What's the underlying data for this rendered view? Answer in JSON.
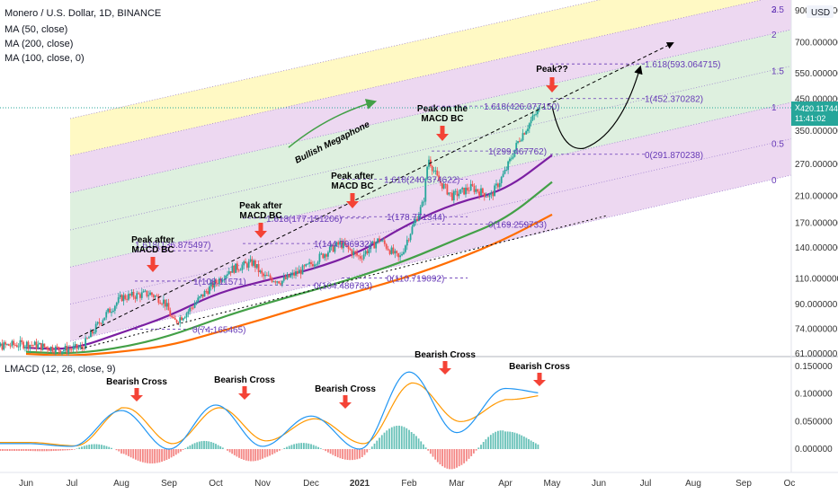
{
  "header": {
    "title": "Monero / U.S. Dollar, 1D, BINANCE",
    "indicators": [
      "MA (50, close)",
      "MA (200, close)",
      "MA (100, close, 0)"
    ],
    "macd_label": "LMACD (12, 26, close, 9)"
  },
  "price_axis": {
    "currency": "USD",
    "ticks": [
      "900.000000",
      "700.000000",
      "550.000000",
      "450.000000",
      "350.000000",
      "270.000000",
      "210.000000",
      "170.000000",
      "140.000000",
      "110.000000",
      "90.000000",
      "74.000000",
      "61.000000"
    ],
    "current_symbol": "XMRUSD",
    "current_price": "420.117442",
    "countdown": "11:41:02"
  },
  "macd_axis": {
    "ticks": [
      "0.150000",
      "0.100000",
      "0.050000",
      "0.000000"
    ]
  },
  "time_axis": {
    "ticks": [
      "Jun",
      "Jul",
      "Aug",
      "Sep",
      "Oct",
      "Nov",
      "Dec",
      "2021",
      "Feb",
      "Mar",
      "Apr",
      "May",
      "Jun",
      "Jul",
      "Aug",
      "Sep",
      "Oc"
    ]
  },
  "channel_levels": [
    "3",
    "2.5",
    "2",
    "1.5",
    "1",
    "0.5",
    "0"
  ],
  "annotations": {
    "megaphone": "Bullish Megaphone",
    "peaks": [
      {
        "line1": "Peak after",
        "line2": "MACD BC"
      },
      {
        "line1": "Peak after",
        "line2": "MACD BC"
      },
      {
        "line1": "Peak after",
        "line2": "MACD BC"
      },
      {
        "line1": "Peak on the",
        "line2": "MACD BC"
      },
      {
        "line1": "Peak??",
        "line2": ""
      }
    ],
    "crosses": [
      "Bearish Cross",
      "Bearish Cross",
      "Bearish Cross",
      "Bearish Cross",
      "Bearish Cross"
    ]
  },
  "fib_labels": [
    "1.618(136.875497)",
    "1(108.11571)",
    "0(74.165465)",
    "1.618(177.151206)",
    "1(144.796932)",
    "0(104.480783)",
    "1.618(240.374622)",
    "1(178.771344)",
    "0(110.719092)",
    "1.618(426.077150)",
    "1(299.467762)",
    "0(169.259733)",
    "1.618(593.064715)",
    "1(452.370282)",
    "0(291.870238)"
  ],
  "colors": {
    "candle_up": "#26a69a",
    "candle_down": "#ef5350",
    "ma50": "#7b1fa2",
    "ma100": "#ff6d00",
    "ma200": "#43a047",
    "band_purple": "#e1bee7",
    "band_green": "#c8e6c9",
    "band_yellow": "#fff59d",
    "macd_line": "#2196f3",
    "signal_line": "#ff9800",
    "arrow": "#f44336",
    "megaphone_text": "#43a047"
  },
  "chart_data": {
    "type": "line",
    "series": [
      {
        "name": "Monero / U.S. Dollar",
        "x": [
          "Jun",
          "Jul",
          "Aug",
          "Sep",
          "Oct",
          "Nov",
          "Dec",
          "2021",
          "Feb",
          "Mar",
          "Apr",
          "May"
        ],
        "values": [
          66,
          64,
          95,
          85,
          118,
          110,
          130,
          160,
          280,
          215,
          255,
          420
        ]
      },
      {
        "name": "MA (50, close)",
        "x": [
          "Jun",
          "Jul",
          "Aug",
          "Sep",
          "Oct",
          "Nov",
          "Dec",
          "2021",
          "Feb",
          "Mar",
          "Apr",
          "May"
        ],
        "values": [
          64,
          63,
          72,
          82,
          98,
          108,
          118,
          135,
          170,
          200,
          220,
          290
        ]
      },
      {
        "name": "MA (200, close)",
        "x": [
          "Jun",
          "Jul",
          "Aug",
          "Sep",
          "Oct",
          "Nov",
          "Dec",
          "2021",
          "Feb",
          "Mar",
          "Apr",
          "May"
        ],
        "values": [
          62,
          61,
          64,
          70,
          80,
          90,
          100,
          112,
          128,
          150,
          175,
          235
        ]
      },
      {
        "name": "MA (100, close, 0)",
        "x": [
          "Jun",
          "Jul",
          "Aug",
          "Sep",
          "Oct",
          "Nov",
          "Dec",
          "2021",
          "Feb",
          "Mar",
          "Apr",
          "May"
        ],
        "values": [
          61,
          60,
          62,
          65,
          72,
          80,
          90,
          100,
          112,
          128,
          150,
          182
        ]
      }
    ],
    "macd": {
      "x": [
        "Jun",
        "Jul",
        "Aug",
        "Sep",
        "Oct",
        "Nov",
        "Dec",
        "2021",
        "Feb",
        "Mar",
        "Apr",
        "May"
      ],
      "macd_values": [
        0.01,
        0.005,
        0.07,
        0.0,
        0.08,
        0.005,
        0.06,
        0.0,
        0.14,
        0.03,
        0.11,
        0.1
      ],
      "signal_values": [
        0.012,
        0.006,
        0.075,
        0.01,
        0.075,
        0.015,
        0.055,
        0.01,
        0.12,
        0.05,
        0.09,
        0.1
      ]
    },
    "ylabel": "",
    "y_scale": "log",
    "ylim": [
      61,
      900
    ]
  }
}
